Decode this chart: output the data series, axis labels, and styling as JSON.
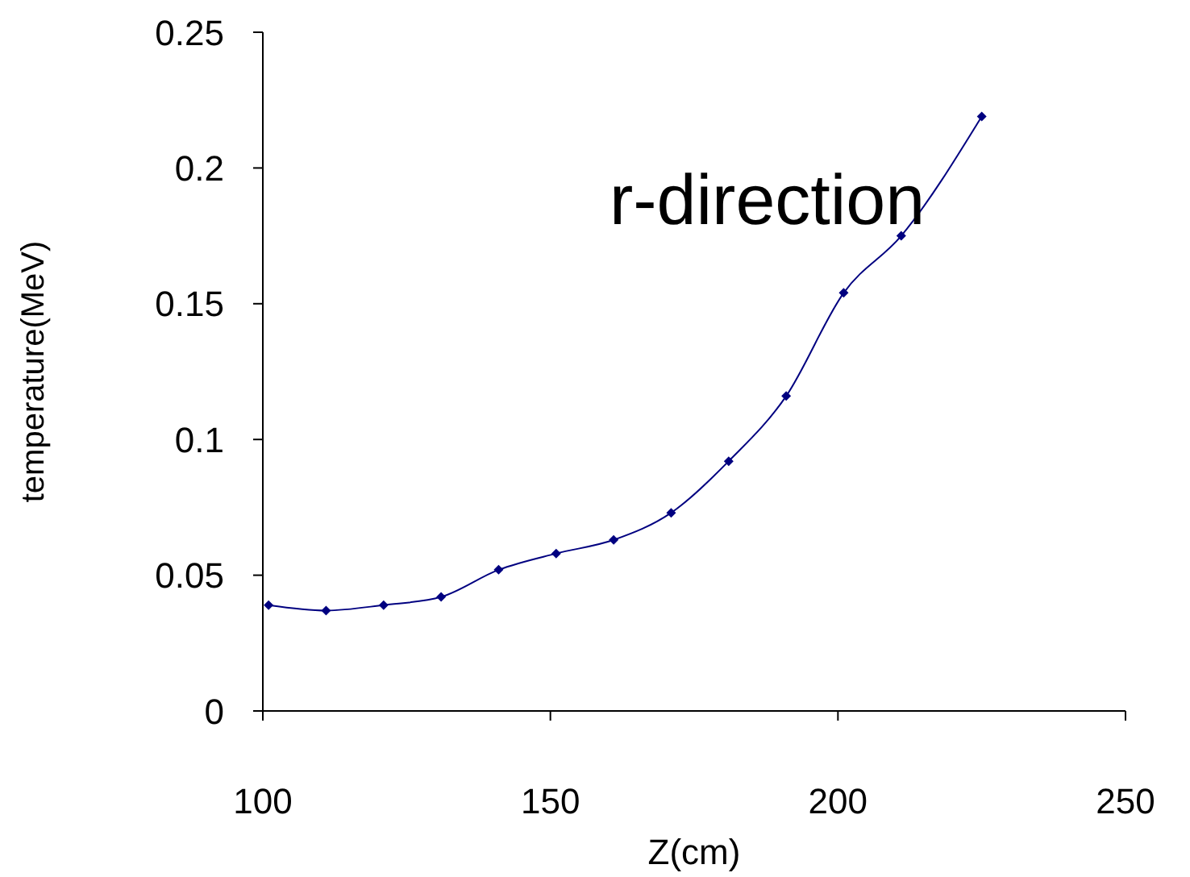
{
  "chart_data": {
    "type": "line",
    "xlabel": "Z(cm)",
    "ylabel": "temperature(MeV)",
    "annotations": [
      "r-direction"
    ],
    "x": [
      101,
      111,
      121,
      131,
      141,
      151,
      161,
      171,
      181,
      191,
      201,
      211,
      225
    ],
    "series": [
      {
        "color": "#000080",
        "values": [
          0.039,
          0.037,
          0.039,
          0.042,
          0.052,
          0.058,
          0.063,
          0.073,
          0.092,
          0.116,
          0.154,
          0.175,
          0.219
        ]
      }
    ],
    "xlim": [
      100,
      250
    ],
    "xticks": [
      100,
      150,
      200,
      250
    ],
    "ylim": [
      0,
      0.25
    ],
    "yticks": [
      0,
      0.05,
      0.1,
      0.15,
      0.2,
      0.25
    ],
    "grid": false,
    "marker": "diamond",
    "line_style": "solid"
  }
}
